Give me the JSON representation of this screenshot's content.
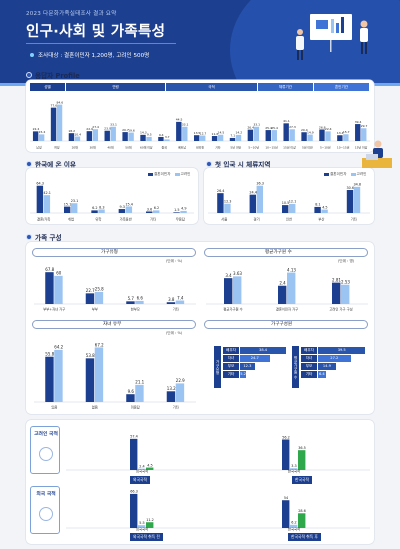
{
  "header": {
    "kicker": "2023 다문화가족실태조사 결과 요약",
    "title": "인구·사회 및 가족특성",
    "meta": "조사대상 : 결혼이민자 1,200명, 고려인 500명"
  },
  "sections": {
    "profile": {
      "title": "응답자 Profile",
      "categories_top": [
        "성별",
        "연령",
        "국적",
        "체류기간",
        "혼인기간"
      ]
    },
    "reason": {
      "title": "한국에 온 이유",
      "legend": [
        "결혼이민자",
        "고려인"
      ]
    },
    "region": {
      "title": "첫 입국 시 체류지역",
      "legend": [
        "결혼이민자",
        "고려인"
      ]
    },
    "family": {
      "title": "가족 구성",
      "household": {
        "title": "가구유형",
        "unit": "(단위 : %)"
      },
      "members": {
        "title": "평균가구원 수",
        "unit": "(단위 : 명)"
      },
      "children": {
        "title": "자녀 유무",
        "unit": "(단위 : %)"
      },
      "household_detail": {
        "title": "가구구성원"
      }
    },
    "ward": {
      "labels": [
        "고려인 국적",
        "외국 국적"
      ],
      "tags": [
        "외국국적",
        "한국국적",
        "외국국적 취득 전",
        "한국국적 취득 후"
      ]
    }
  },
  "colors": {
    "navy": "#1c3f8f",
    "mid": "#3f74d6",
    "light": "#9cc4f2",
    "green": "#2ea84a",
    "accent": "#e9b53c"
  },
  "chart_data": [
    {
      "type": "bar",
      "id": "profile",
      "categories": [
        "남성",
        "여성",
        "20대",
        "30대",
        "40대",
        "50대",
        "60대 이상",
        "중국",
        "베트남",
        "필리핀",
        "기타",
        "5년 미만",
        "5~10년",
        "10~15년",
        "15년 이상",
        "5년 미만",
        "5~10년",
        "10~15년",
        "15년 이상"
      ],
      "series": [
        {
          "name": "결혼이민자",
          "values": [
            22.4,
            77.6,
            18.2,
            22.9,
            23.9,
            20.7,
            14.3,
            9.4,
            44.5,
            13.5,
            11.6,
            7.1,
            26.4,
            25.4,
            41.1,
            20.4,
            26.8,
            13.4,
            39.4
          ]
        },
        {
          "name": "고려인",
          "values": [
            15.4,
            84.6,
            10.4,
            27.4,
            33.1,
            19.6,
            9.5,
            3.7,
            33.1,
            12.7,
            14.5,
            14.2,
            33.1,
            25.4,
            27.3,
            14.9,
            22.4,
            15.7,
            29.7
          ]
        }
      ]
    },
    {
      "type": "bar",
      "id": "reason",
      "categories": [
        "결혼/가족",
        "취업",
        "유학",
        "가족동반",
        "기타",
        "무응답"
      ],
      "series": [
        {
          "name": "결혼이민자",
          "values": [
            64.3,
            15.1,
            6.2,
            9.3,
            3.6,
            1.5
          ]
        },
        {
          "name": "고려인",
          "values": [
            42.1,
            23.1,
            8.3,
            15.4,
            6.2,
            4.9
          ]
        }
      ]
    },
    {
      "type": "bar",
      "id": "region",
      "categories": [
        "서울",
        "경기",
        "인천",
        "부산",
        "기타"
      ],
      "series": [
        {
          "name": "결혼이민자",
          "values": [
            26.4,
            24.4,
            10.5,
            8.1,
            30.6
          ]
        },
        {
          "name": "고려인",
          "values": [
            12.3,
            36.3,
            12.1,
            4.5,
            34.8
          ]
        }
      ]
    },
    {
      "type": "bar",
      "id": "household",
      "categories": [
        "부부+자녀 가구",
        "부부",
        "한부모",
        "기타"
      ],
      "series": [
        {
          "name": "결혼이민자",
          "values": [
            67.8,
            22.7,
            5.7,
            3.8
          ]
        },
        {
          "name": "고려인",
          "values": [
            60.0,
            25.8,
            6.6,
            7.4
          ]
        }
      ]
    },
    {
      "type": "bar",
      "id": "members",
      "categories": [
        "평균가구원 수",
        "결혼이민자 가구",
        "고려인 가구 구성"
      ],
      "series": [
        {
          "name": "결혼이민자",
          "values": [
            3.4,
            2.4,
            2.81
          ]
        },
        {
          "name": "고려인",
          "values": [
            3.63,
            4.13,
            2.53
          ]
        }
      ]
    },
    {
      "type": "bar",
      "id": "children",
      "categories": [
        "있음",
        "없음",
        "미응답",
        "기타"
      ],
      "series": [
        {
          "name": "결혼이민자",
          "values": [
            55.8,
            53.8,
            9.6,
            13.2
          ]
        },
        {
          "name": "고려인",
          "values": [
            64.2,
            67.2,
            21.1,
            22.9
          ]
        }
      ]
    },
    {
      "type": "table",
      "id": "household_detail",
      "rows": [
        "배우자",
        "자녀",
        "부모",
        "기타"
      ],
      "left": [
        38.4,
        24.7,
        12.3,
        5.2
      ],
      "right": [
        39.5,
        27.2,
        14.9,
        6.4
      ]
    },
    {
      "type": "bar",
      "id": "ward_korea",
      "categories": [
        "외국국적",
        "한국국적"
      ],
      "series": [
        {
          "name": "전",
          "values": [
            57.4,
            56.2
          ]
        },
        {
          "name": "후",
          "values": [
            2.4,
            3.3
          ]
        },
        {
          "name": "기타",
          "values": [
            4.5,
            36.5
          ]
        }
      ]
    },
    {
      "type": "bar",
      "id": "ward_foreign",
      "categories": [
        "외국국적",
        "한국국적"
      ],
      "series": [
        {
          "name": "전",
          "values": [
            66.3,
            54.0
          ]
        },
        {
          "name": "후",
          "values": [
            5.5,
            6.2
          ]
        },
        {
          "name": "기타",
          "values": [
            11.2,
            28.6
          ]
        }
      ]
    }
  ]
}
